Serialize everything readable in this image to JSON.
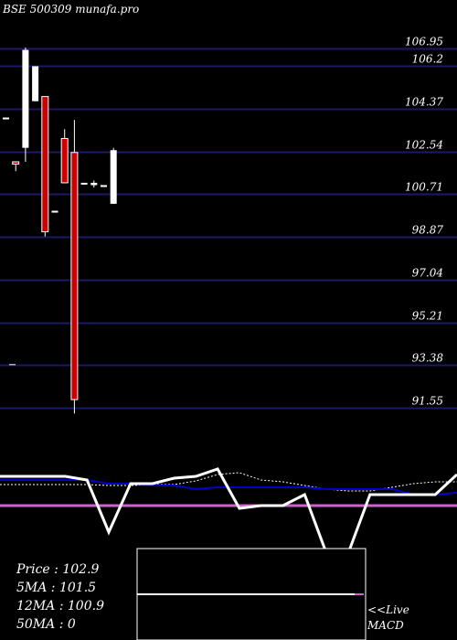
{
  "header": {
    "title": "BSE 500309 munafa.pro"
  },
  "stats": {
    "price_label": "Price   :",
    "price_value": "102.9",
    "ma5_label": "5MA :",
    "ma5_value": "101.5",
    "ma12_label": "12MA :",
    "ma12_value": "100.9",
    "ma50_label": "50MA :",
    "ma50_value": "0"
  },
  "macd_label": {
    "line1": "<<Live",
    "line2": "MACD"
  },
  "colors": {
    "background": "#000000",
    "gridline": "#1a1a66",
    "down_candle": "#cc0000",
    "up_candle": "#ffffff",
    "macd_line": "#0000cc",
    "signal_line": "#cc66cc"
  },
  "chart_data": {
    "type": "candlestick",
    "title": "BSE 500309 munafa.pro",
    "y_ticks": [
      "106.95",
      "106.2",
      "104.37",
      "102.54",
      "100.71",
      "98.87",
      "97.04",
      "95.21",
      "93.38",
      "91.55"
    ],
    "ylim": [
      91.0,
      108.1
    ],
    "grid": true,
    "candles": [
      {
        "open": 104.0,
        "high": 104.0,
        "low": 104.0,
        "close": 104.0
      },
      {
        "open": 102.1,
        "high": 102.1,
        "low": 101.7,
        "close": 102.0
      },
      {
        "open": 102.7,
        "high": 107.0,
        "low": 102.1,
        "close": 106.9
      },
      {
        "open": 104.7,
        "high": 106.2,
        "low": 104.7,
        "close": 106.2
      },
      {
        "open": 104.9,
        "high": 104.9,
        "low": 98.9,
        "close": 99.1
      },
      {
        "open": 100.0,
        "high": 100.0,
        "low": 100.0,
        "close": 100.0
      },
      {
        "open": 103.1,
        "high": 103.5,
        "low": 101.2,
        "close": 101.2
      },
      {
        "open": 102.5,
        "high": 103.9,
        "low": 91.3,
        "close": 91.9
      },
      {
        "open": 101.2,
        "high": 101.2,
        "low": 101.2,
        "close": 101.2
      },
      {
        "open": 101.1,
        "high": 101.3,
        "low": 101.0,
        "close": 101.2
      },
      {
        "open": 101.1,
        "high": 101.1,
        "low": 101.1,
        "close": 101.1
      },
      {
        "open": 100.3,
        "high": 102.7,
        "low": 100.3,
        "close": 102.6
      }
    ],
    "stray_ticks": [
      93.4
    ],
    "indicator": {
      "price_line": [
        0.04,
        0.04,
        0.04,
        0.04,
        0.0,
        -0.57,
        -0.04,
        -0.04,
        0.02,
        0.04,
        0.12,
        -0.31,
        -0.28,
        -0.28,
        -0.16,
        -0.8,
        -0.8,
        -0.16,
        -0.16,
        -0.16,
        -0.16,
        0.06
      ],
      "macd_line": [
        0.0,
        0.0,
        0.0,
        0.0,
        0.0,
        -0.04,
        -0.04,
        -0.06,
        -0.06,
        -0.1,
        -0.08,
        -0.08,
        -0.08,
        -0.08,
        -0.08,
        -0.1,
        -0.1,
        -0.1,
        -0.1,
        -0.16,
        -0.16,
        -0.14
      ],
      "signal_line": [
        -0.05,
        -0.05,
        -0.05,
        -0.05,
        -0.05,
        -0.06,
        -0.06,
        -0.05,
        -0.05,
        -0.01,
        0.06,
        0.08,
        0.0,
        -0.02,
        -0.06,
        -0.1,
        -0.12,
        -0.12,
        -0.08,
        -0.04,
        -0.02,
        -0.02
      ],
      "zero_level": -0.28
    }
  }
}
